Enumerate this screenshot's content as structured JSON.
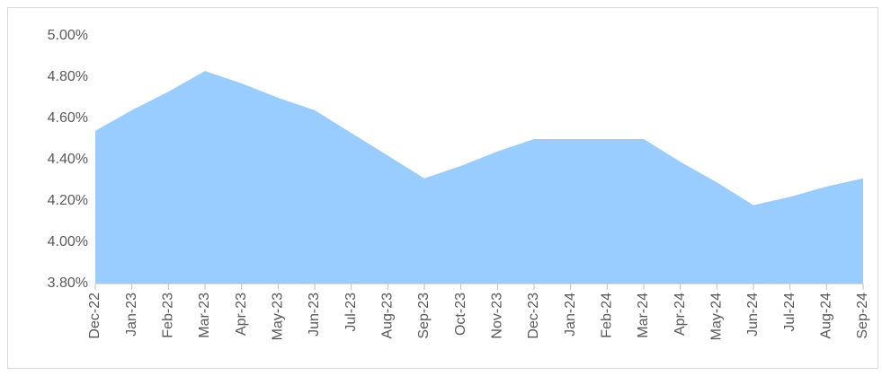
{
  "chart_data": {
    "type": "area",
    "categories": [
      "Dec-22",
      "Jan-23",
      "Feb-23",
      "Mar-23",
      "Apr-23",
      "May-23",
      "Jun-23",
      "Jul-23",
      "Aug-23",
      "Sep-23",
      "Oct-23",
      "Nov-23",
      "Dec-23",
      "Jan-24",
      "Feb-24",
      "Mar-24",
      "Apr-24",
      "May-24",
      "Jun-24",
      "Jul-24",
      "Aug-24",
      "Sep-24"
    ],
    "series": [
      {
        "color": "#99ccff",
        "values": [
          4.54,
          4.64,
          4.73,
          4.83,
          4.77,
          4.7,
          4.64,
          4.53,
          4.42,
          4.31,
          4.37,
          4.44,
          4.5,
          4.5,
          4.5,
          4.5,
          4.39,
          4.29,
          4.18,
          4.22,
          4.27,
          4.31
        ]
      }
    ],
    "ylim": [
      3.8,
      5.0
    ],
    "yticks": [
      {
        "value": 3.8,
        "label": "3.80%"
      },
      {
        "value": 4.0,
        "label": "4.00%"
      },
      {
        "value": 4.2,
        "label": "4.20%"
      },
      {
        "value": 4.4,
        "label": "4.40%"
      },
      {
        "value": 4.6,
        "label": "4.60%"
      },
      {
        "value": 4.8,
        "label": "4.80%"
      },
      {
        "value": 5.0,
        "label": "5.00%"
      }
    ],
    "grid": false
  }
}
